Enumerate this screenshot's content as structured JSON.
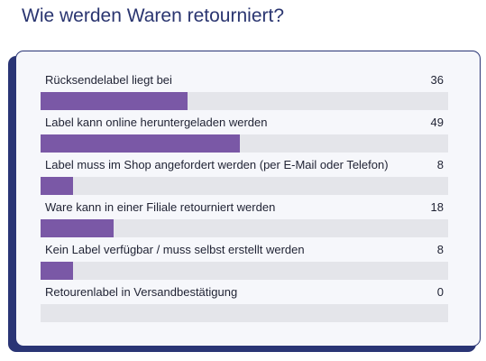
{
  "title": "Wie werden Waren retourniert?",
  "colors": {
    "accent": "#7a58a6",
    "track": "#e4e5ea",
    "frame": "#2a3575",
    "title": "#2a3570"
  },
  "chart_data": {
    "type": "bar",
    "orientation": "horizontal",
    "title": "Wie werden Waren retourniert?",
    "categories": [
      "Rücksendelabel liegt bei",
      "Label kann online heruntergeladen werden",
      "Label muss im Shop angefordert werden (per E-Mail oder Telefon)",
      "Ware kann in einer Filiale retourniert werden",
      "Kein Label verfügbar / muss selbst erstellt werden",
      "Retourenlabel in Versandbestätigung"
    ],
    "values": [
      36,
      49,
      8,
      18,
      8,
      0
    ],
    "xlim": [
      0,
      100
    ],
    "grid": false
  }
}
